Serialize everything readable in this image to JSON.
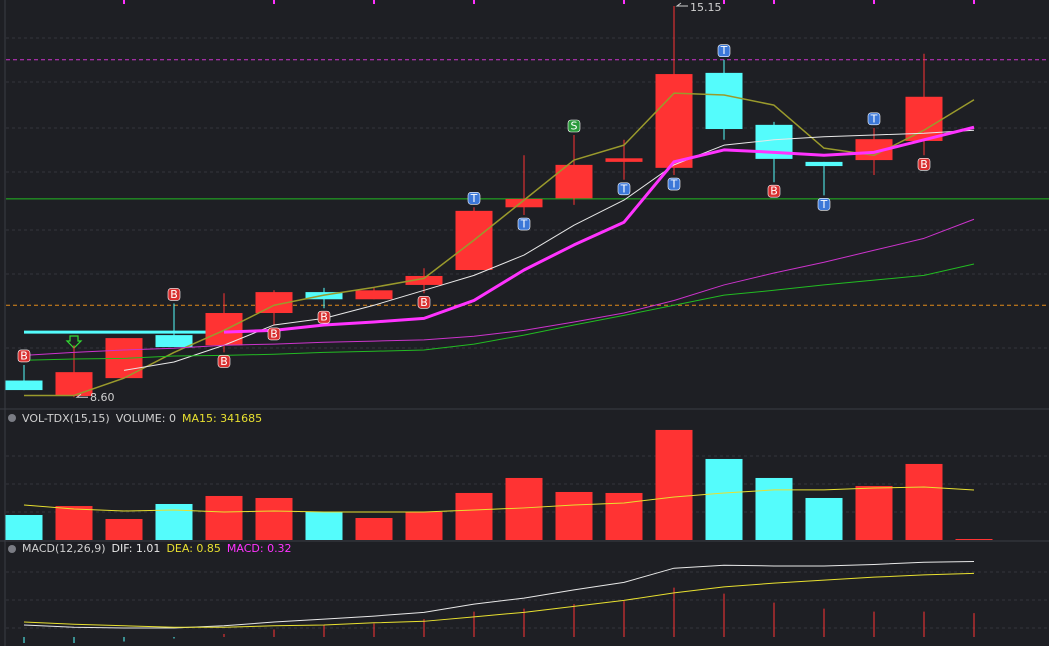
{
  "chart_data": [
    {
      "type": "candlestick",
      "open": [
        8.88,
        8.62,
        8.92,
        9.64,
        9.47,
        10.01,
        10.36,
        10.24,
        10.48,
        10.73,
        11.78,
        11.93,
        12.54,
        12.44,
        14.03,
        13.16,
        12.54,
        12.57,
        12.89,
        null
      ],
      "high": [
        9.14,
        9.47,
        9.59,
        10.17,
        10.34,
        10.39,
        10.43,
        10.43,
        10.76,
        11.78,
        12.65,
        12.99,
        12.91,
        15.15,
        14.25,
        13.21,
        12.54,
        13.11,
        14.35,
        null
      ],
      "low": [
        8.72,
        8.6,
        8.92,
        9.44,
        9.35,
        9.81,
        10.09,
        10.24,
        10.34,
        10.73,
        11.65,
        11.82,
        12.24,
        12.32,
        12.91,
        12.2,
        11.98,
        12.32,
        12.65,
        null
      ],
      "close": [
        8.72,
        9.02,
        9.59,
        9.44,
        10.01,
        10.36,
        10.24,
        10.39,
        10.63,
        11.72,
        11.92,
        12.49,
        12.6,
        14.01,
        13.09,
        12.59,
        12.47,
        12.92,
        13.63,
        null
      ],
      "up_color": "#ff3333",
      "down_color": "#54fcfc",
      "ylim": [
        8.47,
        15.25
      ],
      "lines": [
        {
          "color": "#9a9a2c",
          "width": 1.5,
          "values": [
            8.63,
            8.63,
            8.92,
            9.35,
            9.72,
            10.14,
            10.31,
            10.44,
            10.59,
            11.23,
            11.9,
            12.57,
            12.82,
            13.69,
            13.66,
            13.49,
            12.77,
            12.65,
            13.07,
            13.58
          ]
        },
        {
          "color": "#e8e8e8",
          "width": 1,
          "values": [
            null,
            null,
            9.05,
            9.19,
            9.47,
            9.81,
            9.92,
            10.14,
            10.39,
            10.64,
            10.98,
            11.48,
            11.9,
            12.49,
            12.82,
            12.91,
            12.96,
            12.99,
            13.02,
            13.07
          ]
        },
        {
          "color": "#ff33ff",
          "width": 3,
          "values": [
            null,
            null,
            null,
            null,
            9.69,
            9.72,
            9.81,
            9.86,
            9.92,
            10.22,
            10.73,
            11.15,
            11.53,
            12.54,
            12.74,
            12.7,
            12.65,
            12.7,
            12.91,
            13.12
          ]
        },
        {
          "color": "#cc33cc",
          "width": 1,
          "values": [
            9.3,
            9.35,
            9.39,
            9.42,
            9.47,
            9.49,
            9.52,
            9.54,
            9.56,
            9.62,
            9.72,
            9.86,
            10.01,
            10.22,
            10.48,
            10.68,
            10.86,
            11.06,
            11.26,
            11.58
          ]
        },
        {
          "color": "#22bb22",
          "width": 1,
          "values": [
            9.22,
            9.24,
            9.25,
            9.29,
            9.3,
            9.32,
            9.35,
            9.37,
            9.39,
            9.49,
            9.64,
            9.81,
            9.97,
            10.14,
            10.31,
            10.39,
            10.48,
            10.56,
            10.64,
            10.83
          ]
        }
      ],
      "hlines": [
        {
          "value": 14.25,
          "color": "#cc33cc",
          "dashed": true
        },
        {
          "value": 11.92,
          "color": "#22bb22",
          "dashed": false
        },
        {
          "value": 10.14,
          "color": "#e08a1a",
          "dashed": true
        },
        {
          "value": 9.69,
          "color": "#54fcfc",
          "dashed": false,
          "from": 0,
          "to": 4
        }
      ],
      "signals": [
        {
          "index": 0,
          "label": "B",
          "side": "above"
        },
        {
          "index": 3,
          "label": "B",
          "side": "above"
        },
        {
          "index": 4,
          "label": "B",
          "side": "below"
        },
        {
          "index": 5,
          "label": "B",
          "side": "below"
        },
        {
          "index": 6,
          "label": "B",
          "side": "below"
        },
        {
          "index": 8,
          "label": "B",
          "side": "below"
        },
        {
          "index": 9,
          "label": "T",
          "side": "above"
        },
        {
          "index": 10,
          "label": "T",
          "side": "below"
        },
        {
          "index": 11,
          "label": "S",
          "side": "above"
        },
        {
          "index": 12,
          "label": "T",
          "side": "below"
        },
        {
          "index": 13,
          "label": "T",
          "side": "below"
        },
        {
          "index": 14,
          "label": "T",
          "side": "above"
        },
        {
          "index": 15,
          "label": "B",
          "side": "below"
        },
        {
          "index": 16,
          "label": "T",
          "side": "below"
        },
        {
          "index": 17,
          "label": "T",
          "side": "above"
        },
        {
          "index": 18,
          "label": "B",
          "side": "below"
        }
      ],
      "signal_colors": {
        "B": "#d83030",
        "T": "#3c78d8",
        "S": "#2a9a3a"
      },
      "annotations": [
        {
          "index": 13,
          "value": 15.15
        },
        {
          "index": 1,
          "value": {
            "value": 8.6,
            "label": "8.60"
          }
        }
      ]
    },
    {
      "type": "bar",
      "legend": [
        {
          "text": "VOL-TDX(15,15)",
          "color": "#d0d0d0"
        },
        {
          "text": "VOLUME: 0",
          "color": "#d0d0d0"
        },
        {
          "text": "MA15: 341685",
          "color": "#e8e030"
        }
      ],
      "values": [
        170850,
        232000,
        143500,
        246000,
        300700,
        287000,
        191300,
        150300,
        191300,
        321200,
        423700,
        328000,
        321200,
        751700,
        553500,
        423700,
        287000,
        369000,
        519400,
        0
      ],
      "ma": {
        "color": "#e8e030",
        "values": [
          239000,
          212000,
          198000,
          205000,
          191000,
          198000,
          191000,
          191000,
          191000,
          205000,
          219000,
          239000,
          253000,
          294000,
          321000,
          342000,
          342000,
          355000,
          362000,
          341685
        ]
      },
      "ylim": [
        0,
        765000
      ]
    },
    {
      "type": "macd",
      "legend": [
        {
          "text": "MACD(12,26,9)",
          "color": "#d0d0d0"
        },
        {
          "text": "DIF: 1.01",
          "color": "#e8e8e8"
        },
        {
          "text": "DEA: 0.85",
          "color": "#e8e030"
        },
        {
          "text": "MACD: 0.32",
          "color": "#ff33ff"
        }
      ],
      "dif": {
        "color": "#e8e8e8",
        "values": [
          0.16,
          0.13,
          0.12,
          0.12,
          0.15,
          0.2,
          0.24,
          0.28,
          0.33,
          0.44,
          0.52,
          0.63,
          0.73,
          0.92,
          0.96,
          0.95,
          0.95,
          0.97,
          1.0,
          1.01
        ]
      },
      "dea": {
        "color": "#e8e030",
        "values": [
          0.2,
          0.17,
          0.15,
          0.13,
          0.13,
          0.15,
          0.16,
          0.19,
          0.21,
          0.27,
          0.33,
          0.41,
          0.49,
          0.59,
          0.67,
          0.72,
          0.76,
          0.8,
          0.83,
          0.85
        ]
      },
      "macd": {
        "up_color": "#ff3333",
        "down_color": "#54fcfc",
        "values": [
          -0.08,
          -0.08,
          -0.06,
          -0.02,
          0.04,
          0.1,
          0.16,
          0.18,
          0.24,
          0.34,
          0.38,
          0.44,
          0.48,
          0.66,
          0.58,
          0.46,
          0.38,
          0.34,
          0.34,
          0.32
        ]
      },
      "ylim": [
        -0.12,
        1.23
      ]
    }
  ]
}
